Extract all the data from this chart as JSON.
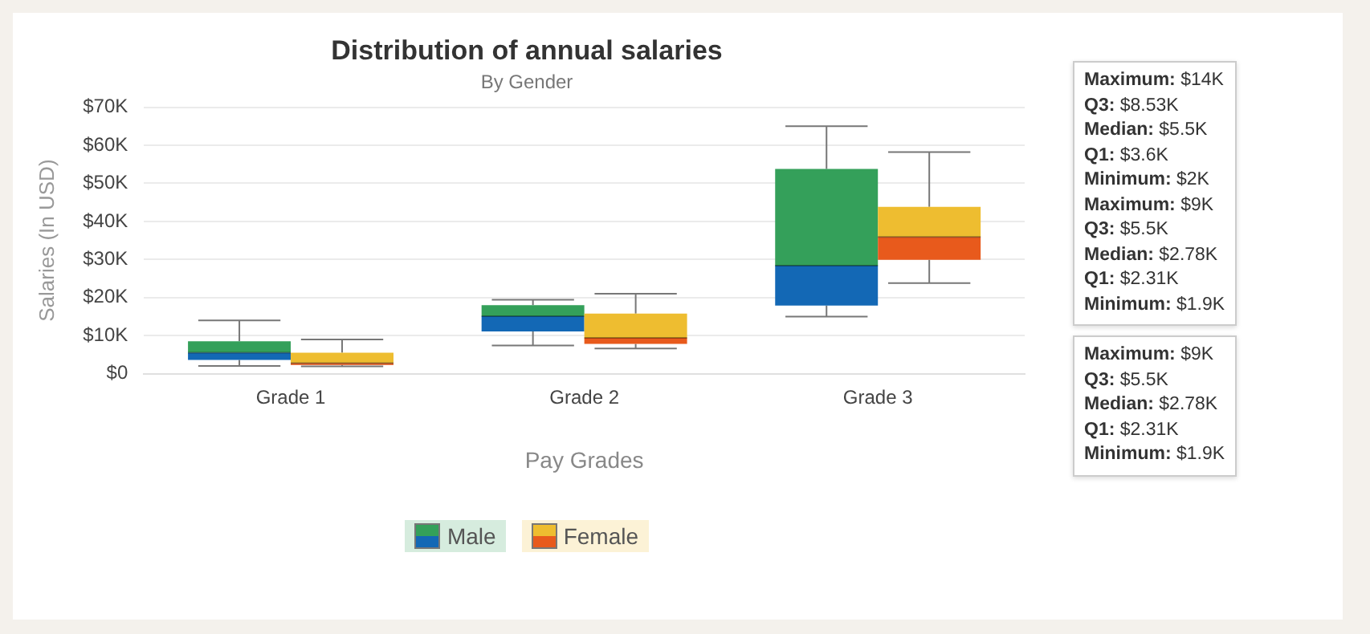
{
  "chart_data": {
    "type": "box",
    "title": "Distribution of annual salaries",
    "subtitle": "By Gender",
    "xlabel": "Pay Grades",
    "ylabel": "Salaries (In USD)",
    "categories": [
      "Grade 1",
      "Grade 2",
      "Grade 3"
    ],
    "series": [
      {
        "name": "Male",
        "color": "#34a05a",
        "colors": [
          "#1368b5",
          "#1368b5",
          "#1368b5"
        ],
        "boxes": [
          {
            "low": 2,
            "q1": 3.6,
            "median": 5.5,
            "q3": 8.53,
            "high": 14
          },
          {
            "low": 7.4,
            "q1": 11.1,
            "median": 15.1,
            "q3": 18,
            "high": 19.4
          },
          {
            "low": 15,
            "q1": 17.9,
            "median": 28.4,
            "q3": 53.8,
            "high": 65
          }
        ]
      },
      {
        "name": "Female",
        "color": "#eebd30",
        "colors": [
          "#e85a1c",
          "#e85a1c",
          "#e85a1c"
        ],
        "boxes": [
          {
            "low": 1.9,
            "q1": 2.31,
            "median": 2.78,
            "q3": 5.5,
            "high": 9
          },
          {
            "low": 6.6,
            "q1": 7.8,
            "median": 9.4,
            "q3": 15.8,
            "high": 21
          },
          {
            "low": 23.8,
            "q1": 29.9,
            "median": 35.9,
            "q3": 43.8,
            "high": 58.2
          }
        ]
      }
    ],
    "ylim": [
      0,
      70
    ],
    "yticks": [
      {
        "value": 0,
        "label": "$0"
      },
      {
        "value": 10,
        "label": "$10K"
      },
      {
        "value": 20,
        "label": "$20K"
      },
      {
        "value": 30,
        "label": "$30K"
      },
      {
        "value": 40,
        "label": "$40K"
      },
      {
        "value": 50,
        "label": "$50K"
      },
      {
        "value": 60,
        "label": "$60K"
      },
      {
        "value": 70,
        "label": "$70K"
      }
    ],
    "grid": "y",
    "legend": "bottom",
    "annotations": [
      "Maximum: $14K\nQ3: $8.53K\nMedian: $5.5K\nQ1: $3.6K\nMinimum: $2K\nMaximum: $9K\nQ3: $5.5K\nMedian: $2.78K\nQ1: $2.31K\nMinimum: $1.9K",
      "Maximum: $9K\nQ3: $5.5K\nMedian: $2.78K\nQ1: $2.31K\nMinimum: $1.9K"
    ]
  }
}
